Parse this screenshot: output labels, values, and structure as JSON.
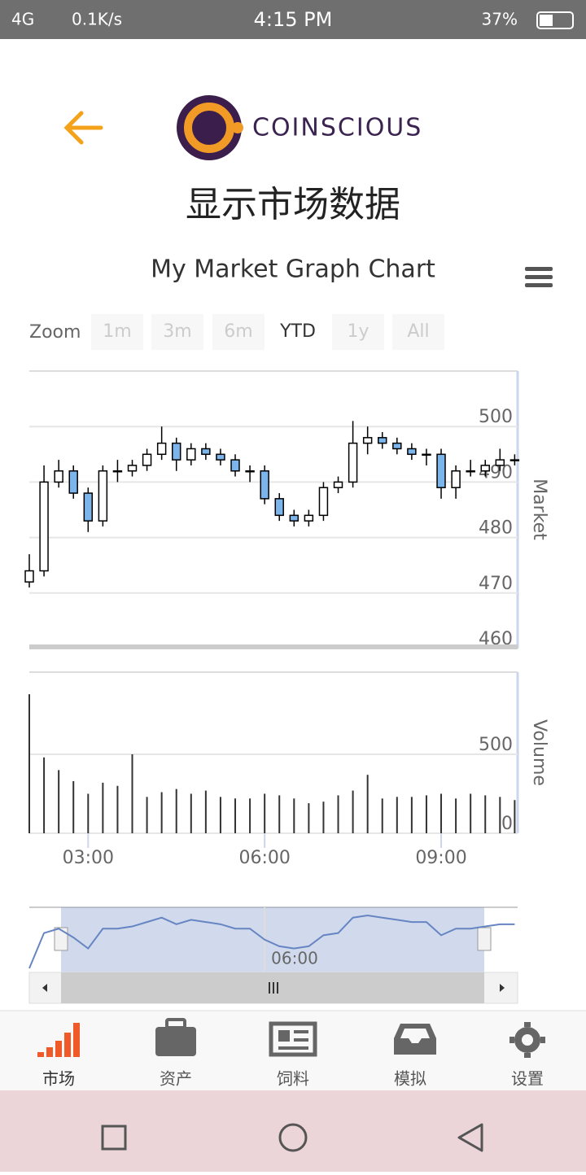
{
  "status_bar": {
    "network": "4G",
    "speed": "0.1K/s",
    "time": "4:15 PM",
    "battery": "37%"
  },
  "header": {
    "brand": "COINSCIOUS",
    "title": "显示市场数据"
  },
  "chart_data": {
    "type": "candlestick",
    "title": "My Market Graph Chart",
    "zoom_label": "Zoom",
    "zoom_buttons": [
      "1m",
      "3m",
      "6m",
      "YTD",
      "1y",
      "All"
    ],
    "zoom_selected": "YTD",
    "x": [
      2,
      2.25,
      2.5,
      2.75,
      3,
      3.25,
      3.5,
      3.75,
      4,
      4.25,
      4.5,
      4.75,
      5,
      5.25,
      5.5,
      5.75,
      6,
      6.25,
      6.5,
      6.75,
      7,
      7.25,
      7.5,
      7.75,
      8,
      8.25,
      8.5,
      8.75,
      9,
      9.25,
      9.5,
      9.75,
      10,
      10.25
    ],
    "open": [
      472,
      474,
      490,
      492,
      488,
      483,
      492,
      492,
      493,
      495,
      497,
      494,
      496,
      495,
      494,
      492,
      492,
      487,
      484,
      483,
      484,
      489,
      490,
      497,
      498,
      497,
      496,
      495,
      495,
      489,
      492,
      492,
      493,
      494
    ],
    "high": [
      477,
      493,
      494,
      493,
      489,
      493,
      494,
      494,
      496,
      500,
      498,
      497,
      497,
      496,
      495,
      493,
      493,
      488,
      485,
      485,
      490,
      491,
      501,
      500,
      499,
      498,
      497,
      496,
      496,
      493,
      494,
      494,
      496,
      495
    ],
    "low": [
      471,
      473,
      489,
      487,
      481,
      482,
      490,
      491,
      492,
      494,
      492,
      493,
      494,
      493,
      491,
      490,
      486,
      483,
      482,
      482,
      483,
      488,
      489,
      495,
      496,
      495,
      494,
      493,
      487,
      487,
      491,
      491,
      492,
      493
    ],
    "close": [
      474,
      490,
      492,
      488,
      483,
      492,
      492,
      493,
      495,
      497,
      494,
      496,
      495,
      494,
      492,
      492,
      487,
      484,
      483,
      484,
      489,
      490,
      497,
      498,
      497,
      496,
      495,
      495,
      489,
      492,
      492,
      493,
      494,
      494
    ],
    "up_color": "#ffffff",
    "down_color": "#7cb5ec",
    "xlim": [
      2,
      10.3
    ],
    "xticks": [
      {
        "value": 3,
        "label": "03:00"
      },
      {
        "value": 6,
        "label": "06:00"
      },
      {
        "value": 9,
        "label": "09:00"
      }
    ],
    "ylim": [
      460,
      510
    ],
    "yticks": [
      460,
      470,
      480,
      490,
      500
    ],
    "y_title": "Market",
    "volume": {
      "name": "Volume",
      "values": [
        880,
        480,
        400,
        330,
        250,
        320,
        300,
        500,
        230,
        260,
        280,
        250,
        270,
        230,
        220,
        220,
        250,
        240,
        220,
        190,
        200,
        240,
        270,
        370,
        220,
        230,
        230,
        240,
        250,
        220,
        250,
        240,
        230,
        210
      ],
      "ylim": [
        0,
        1020
      ],
      "yticks": [
        0,
        500
      ]
    },
    "navigator_color": "#6685c2"
  },
  "tabs": [
    "市场",
    "资产",
    "饲料",
    "模拟",
    "设置"
  ]
}
